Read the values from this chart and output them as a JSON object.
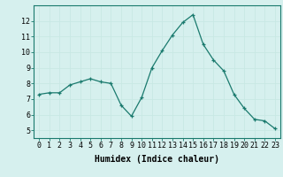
{
  "x": [
    0,
    1,
    2,
    3,
    4,
    5,
    6,
    7,
    8,
    9,
    10,
    11,
    12,
    13,
    14,
    15,
    16,
    17,
    18,
    19,
    20,
    21,
    22,
    23
  ],
  "y": [
    7.3,
    7.4,
    7.4,
    7.9,
    8.1,
    8.3,
    8.1,
    8.0,
    6.6,
    5.9,
    7.1,
    9.0,
    10.1,
    11.1,
    11.9,
    12.4,
    10.5,
    9.5,
    8.8,
    7.3,
    6.4,
    5.7,
    5.6,
    5.1
  ],
  "xlabel": "Humidex (Indice chaleur)",
  "ylim": [
    4.5,
    13
  ],
  "xlim": [
    -0.5,
    23.5
  ],
  "yticks": [
    5,
    6,
    7,
    8,
    9,
    10,
    11,
    12
  ],
  "xticks": [
    0,
    1,
    2,
    3,
    4,
    5,
    6,
    7,
    8,
    9,
    10,
    11,
    12,
    13,
    14,
    15,
    16,
    17,
    18,
    19,
    20,
    21,
    22,
    23
  ],
  "line_color": "#1a7a6e",
  "marker": "+",
  "marker_size": 3,
  "bg_color": "#d6f0ee",
  "grid_color": "#c8e8e4",
  "tick_label_fontsize": 6,
  "xlabel_fontsize": 7
}
